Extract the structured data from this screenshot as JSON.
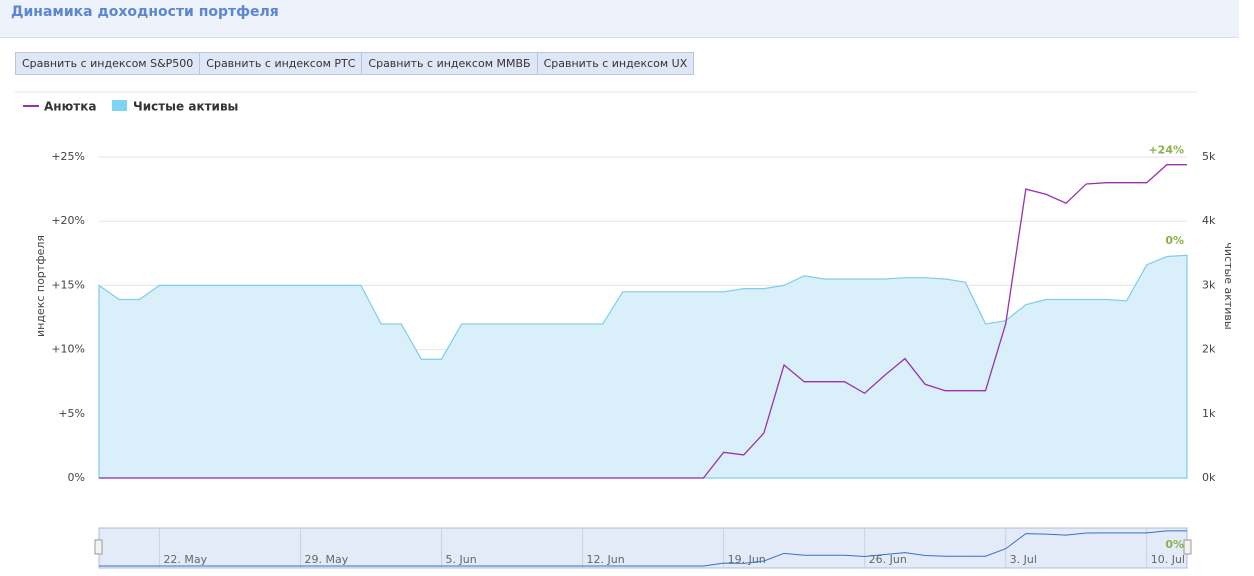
{
  "header": {
    "title": "Динамика доходности портфеля"
  },
  "buttons": [
    "Сравнить с индексом S&P500",
    "Сравнить с индексом РТС",
    "Сравнить с индексом ММВБ",
    "Сравнить с индексом UX"
  ],
  "chart_data": {
    "type": "line",
    "y_label": "индекс портфеля",
    "y2_label": "чистые активы",
    "x": [
      0,
      1,
      2,
      3,
      4,
      5,
      6,
      7,
      8,
      9,
      10,
      11,
      12,
      13,
      14,
      15,
      16,
      17,
      18,
      19,
      20,
      21,
      22,
      23,
      24,
      25,
      26,
      27,
      28,
      29,
      30,
      31,
      32,
      33,
      34,
      35,
      36,
      37,
      38,
      39,
      40,
      41,
      42,
      43,
      44,
      45,
      46,
      47,
      48,
      49,
      50,
      51,
      52,
      53,
      54
    ],
    "xlim": [
      0,
      54
    ],
    "series": [
      {
        "name": "Анютка",
        "type": "line",
        "color": "#9b30b0",
        "axis": "y",
        "values": [
          0,
          0,
          0,
          0,
          0,
          0,
          0,
          0,
          0,
          0,
          0,
          0,
          0,
          0,
          0,
          0,
          0,
          0,
          0,
          0,
          0,
          0,
          0,
          0,
          0,
          0,
          0,
          0,
          0,
          0,
          0,
          2,
          1.8,
          3.5,
          8.8,
          7.5,
          7.5,
          7.5,
          6.6,
          8,
          9.3,
          7.3,
          6.8,
          6.8,
          6.8,
          12,
          22.5,
          22.1,
          21.4,
          22.9,
          23,
          23,
          23,
          24.4,
          24.4
        ]
      },
      {
        "name": "Чистые активы",
        "type": "area",
        "color": "#7fd3f5",
        "axis": "y2",
        "values": [
          3000,
          2780,
          2780,
          3000,
          3000,
          3000,
          3000,
          3000,
          3000,
          3000,
          3000,
          3000,
          3000,
          3000,
          2400,
          2400,
          1850,
          1850,
          2400,
          2400,
          2400,
          2400,
          2400,
          2400,
          2400,
          2400,
          2900,
          2900,
          2900,
          2900,
          2900,
          2900,
          2950,
          2950,
          3000,
          3150,
          3100,
          3100,
          3100,
          3100,
          3120,
          3120,
          3100,
          3050,
          2400,
          2450,
          2700,
          2780,
          2780,
          2780,
          2780,
          2760,
          3320,
          3450,
          3470
        ]
      }
    ],
    "ylim": [
      0,
      25
    ],
    "yticks": [
      {
        "value": 0,
        "label": "0%"
      },
      {
        "value": 5,
        "label": "+5%"
      },
      {
        "value": 10,
        "label": "+10%"
      },
      {
        "value": 15,
        "label": "+15%"
      },
      {
        "value": 20,
        "label": "+20%"
      },
      {
        "value": 25,
        "label": "+25%"
      }
    ],
    "y2lim": [
      0,
      5000
    ],
    "y2ticks": [
      {
        "value": 0,
        "label": "0k"
      },
      {
        "value": 1000,
        "label": "1k"
      },
      {
        "value": 2000,
        "label": "2k"
      },
      {
        "value": 3000,
        "label": "3k"
      },
      {
        "value": 4000,
        "label": "4k"
      },
      {
        "value": 5000,
        "label": "5k"
      }
    ],
    "grid": true,
    "legend": "top-left",
    "annotations": [
      "+24%",
      "0%"
    ],
    "navigator_xticks": [
      {
        "value": 3,
        "label": "22. May"
      },
      {
        "value": 10,
        "label": "29. May"
      },
      {
        "value": 17,
        "label": "5. Jun"
      },
      {
        "value": 24,
        "label": "12. Jun"
      },
      {
        "value": 31,
        "label": "19. Jun"
      },
      {
        "value": 38,
        "label": "26. Jun"
      },
      {
        "value": 45,
        "label": "3. Jul"
      },
      {
        "value": 52,
        "label": "10. Jul"
      }
    ]
  }
}
